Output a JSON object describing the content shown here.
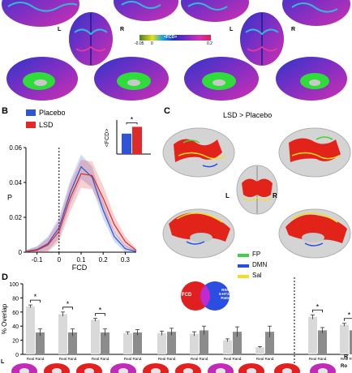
{
  "panelA": {
    "hemi_left": "L",
    "hemi_right": "R",
    "hemi_left_2": "L",
    "hemi_right_2": "R",
    "colorbar": {
      "title": "<FCD>",
      "min_label": "-0.05",
      "zero_label": "0",
      "max_label": "0.2",
      "colors": [
        "#4b7d2b",
        "#e8e01c",
        "#1aa7d8",
        "#1d2fc9",
        "#7a2bc6",
        "#d72fb8",
        "#e0204a"
      ]
    }
  },
  "panelB": {
    "letter": "B",
    "legend": [
      {
        "label": "Placebo",
        "color": "#2f55d4"
      },
      {
        "label": "LSD",
        "color": "#e02a2a"
      }
    ],
    "inset": {
      "ylabel": "<FCD>",
      "star": "*",
      "placebo_value": 0.09,
      "lsd_value": 0.12,
      "ylim": [
        0,
        0.15
      ]
    }
  },
  "panelC": {
    "letter": "C",
    "title": "LSD > Placebo",
    "hemi_left": "L",
    "hemi_right": "R",
    "legend": [
      {
        "label": "FP",
        "color": "#3ed23e"
      },
      {
        "label": "DMN",
        "color": "#2a4fe0"
      },
      {
        "label": "Sal",
        "color": "#f0e020"
      }
    ]
  },
  "panelD": {
    "letter": "D",
    "ylabel": "% Overlap",
    "hemi_left": "L",
    "hemi_right": "R",
    "venn": {
      "left_label": "FCD",
      "right_label": "RSN\n5-HT2A\nPatts"
    },
    "brain_strip_label": "Ro"
  },
  "chart_data": [
    {
      "type": "line",
      "xlabel": "FCD",
      "ylabel": "P",
      "xlim": [
        -0.15,
        0.35
      ],
      "ylim": [
        0,
        0.06
      ],
      "xticks": [
        "-0.1",
        "0",
        "0.1",
        "0.2",
        "0.3"
      ],
      "yticks": [
        "0",
        "0.02",
        "0.04",
        "0.06"
      ],
      "grid": false,
      "reference_line_x": 0,
      "series": [
        {
          "name": "Placebo",
          "color": "#2f55d4",
          "x": [
            -0.15,
            -0.1,
            -0.05,
            0,
            0.05,
            0.1,
            0.15,
            0.2,
            0.25,
            0.3,
            0.35
          ],
          "y": [
            0.0005,
            0.0015,
            0.005,
            0.014,
            0.034,
            0.049,
            0.043,
            0.024,
            0.009,
            0.002,
            0.0003
          ],
          "band": [
            0.0008,
            0.002,
            0.004,
            0.006,
            0.007,
            0.007,
            0.006,
            0.005,
            0.003,
            0.002,
            0.0008
          ]
        },
        {
          "name": "LSD",
          "color": "#e02a2a",
          "x": [
            -0.15,
            -0.1,
            -0.05,
            0,
            0.05,
            0.1,
            0.15,
            0.2,
            0.25,
            0.3,
            0.35
          ],
          "y": [
            0.0003,
            0.0011,
            0.0042,
            0.012,
            0.031,
            0.045,
            0.044,
            0.031,
            0.016,
            0.006,
            0.001
          ],
          "band": [
            0.0008,
            0.002,
            0.004,
            0.006,
            0.008,
            0.008,
            0.008,
            0.007,
            0.005,
            0.003,
            0.001
          ]
        }
      ]
    },
    {
      "type": "bar",
      "ylabel": "% Overlap",
      "ylim": [
        0,
        100
      ],
      "yticks": [
        "0",
        "20",
        "40",
        "60",
        "80",
        "100"
      ],
      "group_labels": [
        "Real",
        "Rand."
      ],
      "series": [
        {
          "name": "Real",
          "color": "#d9d9d9",
          "values": [
            68,
            57,
            49,
            30,
            30,
            29,
            20,
            10,
            53,
            42
          ],
          "errors": [
            2,
            3,
            2,
            2,
            3,
            3,
            2,
            1,
            3,
            2
          ]
        },
        {
          "name": "Rand.",
          "color": "#8c8c8c",
          "values": [
            31,
            31,
            31,
            31,
            32,
            34,
            32,
            32,
            34,
            34
          ],
          "errors": [
            5,
            5,
            5,
            4,
            5,
            6,
            7,
            8,
            4,
            3
          ]
        }
      ],
      "significant": [
        true,
        true,
        true,
        false,
        false,
        false,
        false,
        false,
        true,
        true
      ]
    }
  ]
}
